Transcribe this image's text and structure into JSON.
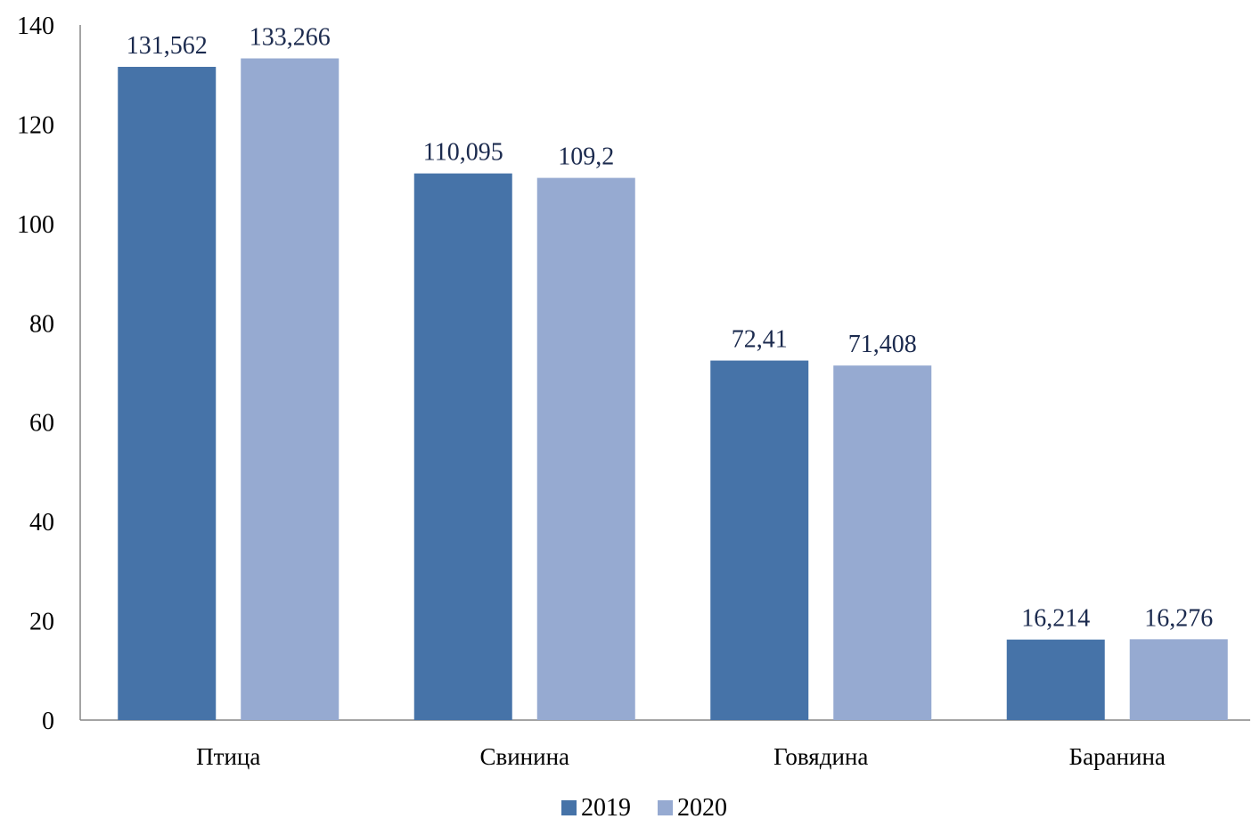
{
  "chart_data": {
    "type": "bar",
    "categories": [
      "Птица",
      "Свинина",
      "Говядина",
      "Баранина"
    ],
    "series": [
      {
        "name": "2019",
        "values": [
          131.562,
          110.095,
          72.41,
          16.214
        ],
        "data_labels": [
          "131,562",
          "110,095",
          "72,41",
          "16,214"
        ],
        "color": "#4673A8"
      },
      {
        "name": "2020",
        "values": [
          133.266,
          109.2,
          71.408,
          16.276
        ],
        "data_labels": [
          "133,266",
          "109,2",
          "71,408",
          "16,276"
        ],
        "color": "#96AAD1"
      }
    ],
    "ylim": [
      0,
      140
    ],
    "yticks": [
      0,
      20,
      40,
      60,
      80,
      100,
      120,
      140
    ],
    "grid": false,
    "legend": "bottom",
    "data_label_color": "#1B2A4E",
    "axis_color": "#868686"
  }
}
